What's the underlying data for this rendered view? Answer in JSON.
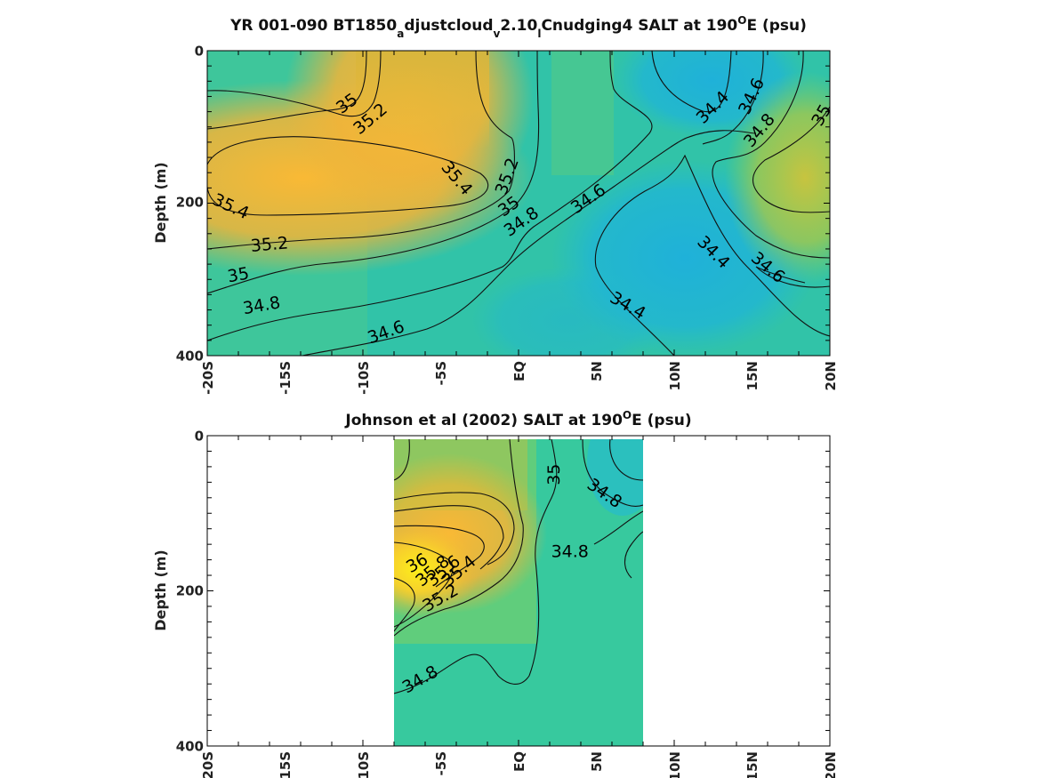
{
  "chart_data": [
    {
      "type": "heatmap",
      "subtype": "contour",
      "title": "YR 001-090 BT1850",
      "title_sub1": "a",
      "title_mid1": "djustcloud",
      "title_sub2": "v",
      "title_mid2": "2.10",
      "title_sub3": "l",
      "title_mid3": "Cnudging4 SALT at 190",
      "title_sup": "O",
      "title_end": "E (psu)",
      "ylabel": "Depth (m)",
      "xlabel": "",
      "x_ticks": [
        "-20S",
        "-15S",
        "-10S",
        "-5S",
        "EQ",
        "5N",
        "10N",
        "15N",
        "20N"
      ],
      "y_ticks": [
        "0",
        "200",
        "400"
      ],
      "xlim": [
        -20,
        20
      ],
      "ylim": [
        0,
        400
      ],
      "colormap": [
        "#1fb2d8",
        "#2ec6a6",
        "#6fd06a",
        "#c8c23e",
        "#f7b833",
        "#fdef1a"
      ],
      "contour_labels": [
        {
          "text": "35",
          "x": -11,
          "y": 70,
          "rot": -35
        },
        {
          "text": "35.2",
          "x": -9.5,
          "y": 90,
          "rot": -40
        },
        {
          "text": "35.4",
          "x": -18.5,
          "y": 205,
          "rot": 25
        },
        {
          "text": "35.4",
          "x": -4,
          "y": 168,
          "rot": 50
        },
        {
          "text": "35.2",
          "x": -16,
          "y": 255,
          "rot": -5
        },
        {
          "text": "35",
          "x": -18,
          "y": 295,
          "rot": -10
        },
        {
          "text": "34.8",
          "x": -16.5,
          "y": 335,
          "rot": -10
        },
        {
          "text": "34.6",
          "x": -8.5,
          "y": 370,
          "rot": -20
        },
        {
          "text": "35.2",
          "x": -0.7,
          "y": 165,
          "rot": -70
        },
        {
          "text": "35",
          "x": -0.6,
          "y": 205,
          "rot": -35
        },
        {
          "text": "34.8",
          "x": 0.2,
          "y": 225,
          "rot": -35
        },
        {
          "text": "34.6",
          "x": 4.5,
          "y": 195,
          "rot": -35
        },
        {
          "text": "34.4",
          "x": 12.5,
          "y": 75,
          "rot": -45
        },
        {
          "text": "34.6",
          "x": 15,
          "y": 60,
          "rot": -65
        },
        {
          "text": "34.8",
          "x": 15.5,
          "y": 105,
          "rot": -50
        },
        {
          "text": "35",
          "x": 19.5,
          "y": 85,
          "rot": -60
        },
        {
          "text": "34.4",
          "x": 12.5,
          "y": 265,
          "rot": 45
        },
        {
          "text": "34.6",
          "x": 16,
          "y": 285,
          "rot": 40
        },
        {
          "text": "34.4",
          "x": 7,
          "y": 335,
          "rot": 30
        }
      ]
    },
    {
      "type": "heatmap",
      "subtype": "contour",
      "title": "Johnson et al (2002) SALT at 190",
      "title_sup": "O",
      "title_end": "E (psu)",
      "ylabel": "Depth (m)",
      "xlabel": "",
      "x_ticks": [
        "-20S",
        "-15S",
        "-10S",
        "-5S",
        "EQ",
        "5N",
        "10N",
        "15N",
        "20N"
      ],
      "y_ticks": [
        "0",
        "200",
        "400"
      ],
      "xlim": [
        -20,
        20
      ],
      "ylim": [
        0,
        400
      ],
      "data_xlim": [
        -8,
        8
      ],
      "contour_labels": [
        {
          "text": "35",
          "x": 2.3,
          "y": 50,
          "rot": -90
        },
        {
          "text": "34.8",
          "x": 5.5,
          "y": 75,
          "rot": 35
        },
        {
          "text": "34.8",
          "x": 3.3,
          "y": 150,
          "rot": 0
        },
        {
          "text": "36",
          "x": -6.5,
          "y": 165,
          "rot": -30
        },
        {
          "text": "35.8",
          "x": -5.5,
          "y": 175,
          "rot": -40
        },
        {
          "text": "35.6",
          "x": -4.8,
          "y": 175,
          "rot": -40
        },
        {
          "text": "35.4",
          "x": -3.8,
          "y": 175,
          "rot": -40
        },
        {
          "text": "35.2",
          "x": -5,
          "y": 210,
          "rot": -30
        },
        {
          "text": "34.8",
          "x": -6.3,
          "y": 315,
          "rot": -30
        }
      ]
    }
  ]
}
